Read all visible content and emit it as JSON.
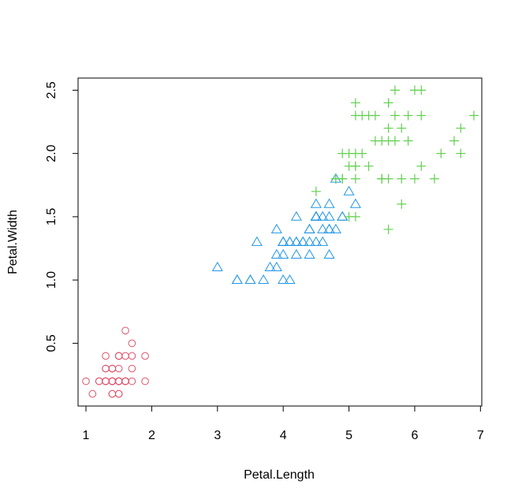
{
  "chart_data": {
    "type": "scatter",
    "title": "",
    "xlabel": "Petal.Length",
    "ylabel": "Petal.Width",
    "xlim": [
      0.88,
      7.02
    ],
    "ylim": [
      0.004,
      2.596
    ],
    "xticks": [
      1,
      2,
      3,
      4,
      5,
      6,
      7
    ],
    "yticks": [
      0.5,
      1.0,
      1.5,
      2.0,
      2.5
    ],
    "xtick_labels": [
      "1",
      "2",
      "3",
      "4",
      "5",
      "6",
      "7"
    ],
    "ytick_labels": [
      "0.5",
      "1.0",
      "1.5",
      "2.0",
      "2.5"
    ],
    "grid": false,
    "legend": "none",
    "series": [
      {
        "marker": "circle",
        "color": "#DF536B",
        "x": [
          1.4,
          1.4,
          1.3,
          1.5,
          1.4,
          1.7,
          1.4,
          1.5,
          1.4,
          1.5,
          1.5,
          1.6,
          1.4,
          1.1,
          1.2,
          1.5,
          1.3,
          1.4,
          1.7,
          1.5,
          1.7,
          1.5,
          1.0,
          1.7,
          1.9,
          1.6,
          1.6,
          1.5,
          1.4,
          1.6,
          1.6,
          1.5,
          1.5,
          1.4,
          1.5,
          1.2,
          1.3,
          1.4,
          1.3,
          1.5,
          1.3,
          1.3,
          1.3,
          1.6,
          1.9,
          1.4,
          1.6,
          1.4,
          1.5,
          1.4
        ],
        "y": [
          0.2,
          0.2,
          0.2,
          0.2,
          0.2,
          0.4,
          0.3,
          0.2,
          0.2,
          0.1,
          0.2,
          0.2,
          0.1,
          0.1,
          0.2,
          0.4,
          0.4,
          0.3,
          0.3,
          0.3,
          0.2,
          0.4,
          0.2,
          0.5,
          0.2,
          0.2,
          0.4,
          0.2,
          0.2,
          0.2,
          0.2,
          0.4,
          0.1,
          0.2,
          0.2,
          0.2,
          0.2,
          0.1,
          0.2,
          0.2,
          0.3,
          0.3,
          0.2,
          0.6,
          0.4,
          0.3,
          0.2,
          0.2,
          0.2,
          0.2
        ]
      },
      {
        "marker": "triangle",
        "color": "#2297E6",
        "x": [
          4.7,
          4.5,
          4.9,
          4.0,
          4.6,
          4.5,
          4.7,
          3.3,
          4.6,
          3.9,
          3.5,
          4.2,
          4.0,
          4.7,
          3.6,
          4.4,
          4.5,
          4.1,
          4.5,
          3.9,
          4.8,
          4.0,
          4.9,
          4.7,
          4.3,
          4.4,
          4.8,
          5.0,
          4.5,
          3.5,
          3.8,
          3.7,
          3.9,
          5.1,
          4.5,
          4.5,
          4.7,
          4.4,
          4.1,
          4.0,
          4.4,
          4.6,
          4.0,
          3.3,
          4.2,
          4.2,
          4.2,
          4.3,
          3.0,
          4.1
        ],
        "y": [
          1.4,
          1.5,
          1.5,
          1.3,
          1.5,
          1.3,
          1.6,
          1.0,
          1.3,
          1.4,
          1.0,
          1.5,
          1.0,
          1.4,
          1.3,
          1.4,
          1.5,
          1.0,
          1.5,
          1.1,
          1.8,
          1.3,
          1.5,
          1.2,
          1.3,
          1.4,
          1.4,
          1.7,
          1.5,
          1.0,
          1.1,
          1.0,
          1.2,
          1.6,
          1.5,
          1.6,
          1.5,
          1.3,
          1.3,
          1.3,
          1.2,
          1.4,
          1.2,
          1.0,
          1.3,
          1.2,
          1.3,
          1.3,
          1.1,
          1.3
        ]
      },
      {
        "marker": "plus",
        "color": "#61D04F",
        "x": [
          6.0,
          5.1,
          5.9,
          5.6,
          5.8,
          6.6,
          4.5,
          6.3,
          5.8,
          6.1,
          5.1,
          5.3,
          5.5,
          5.0,
          5.1,
          5.3,
          5.5,
          6.7,
          6.9,
          5.0,
          5.7,
          4.9,
          6.7,
          4.9,
          5.7,
          6.0,
          4.8,
          4.9,
          5.6,
          5.8,
          6.1,
          6.4,
          5.6,
          5.1,
          5.6,
          6.1,
          5.6,
          5.5,
          4.8,
          5.4,
          5.6,
          5.1,
          5.1,
          5.9,
          5.7,
          5.2,
          5.0,
          5.2,
          5.4,
          5.1
        ],
        "y": [
          2.5,
          1.9,
          2.1,
          1.8,
          2.2,
          2.1,
          1.7,
          1.8,
          1.8,
          2.5,
          2.0,
          1.9,
          2.1,
          2.0,
          2.4,
          2.3,
          1.8,
          2.2,
          2.3,
          1.5,
          2.3,
          2.0,
          2.0,
          1.8,
          2.1,
          1.8,
          1.8,
          1.8,
          2.1,
          1.6,
          1.9,
          2.0,
          2.2,
          1.5,
          1.4,
          2.3,
          2.4,
          1.8,
          1.8,
          2.1,
          2.4,
          2.3,
          1.9,
          2.3,
          2.5,
          2.3,
          1.9,
          2.0,
          2.3,
          1.8
        ]
      }
    ]
  }
}
